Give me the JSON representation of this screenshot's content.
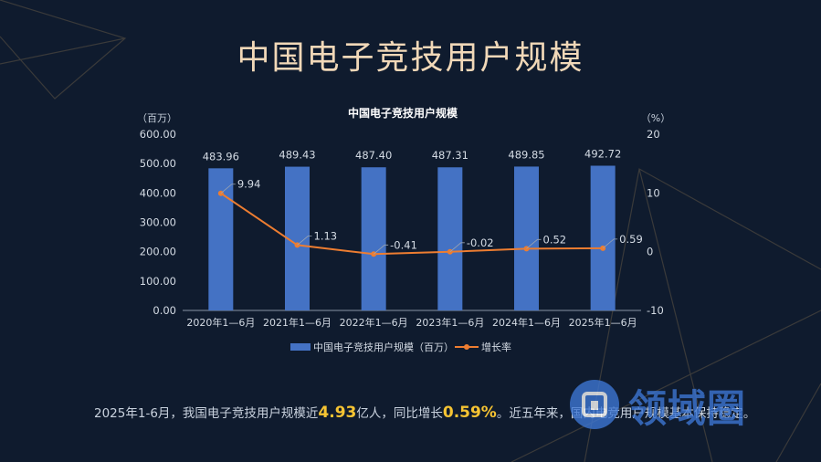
{
  "slide": {
    "title": "中国电子竞技用户规模"
  },
  "chart_data": {
    "type": "bar",
    "title": "中国电子竞技用户规模",
    "categories": [
      "2020年1—6月",
      "2021年1—6月",
      "2022年1—6月",
      "2023年1—6月",
      "2024年1—6月",
      "2025年1—6月"
    ],
    "series": [
      {
        "name": "中国电子竞技用户规模（百万）",
        "type": "bar",
        "axis": "left",
        "values": [
          483.96,
          489.43,
          487.4,
          487.31,
          489.85,
          492.72
        ],
        "labels": [
          "483.96",
          "489.43",
          "487.40",
          "487.31",
          "489.85",
          "492.72"
        ]
      },
      {
        "name": "增长率",
        "type": "line",
        "axis": "right",
        "values": [
          9.94,
          1.13,
          -0.41,
          -0.02,
          0.52,
          0.59
        ],
        "labels": [
          "9.94",
          "1.13",
          "-0.41",
          "-0.02",
          "0.52",
          "0.59"
        ]
      }
    ],
    "y_left": {
      "unit": "（百万）",
      "range": [
        0,
        600
      ],
      "ticks": [
        "0.00",
        "100.00",
        "200.00",
        "300.00",
        "400.00",
        "500.00",
        "600.00"
      ]
    },
    "y_right": {
      "unit": "（%）",
      "range": [
        -10,
        20
      ],
      "ticks": [
        "-10",
        "0",
        "10",
        "20"
      ]
    },
    "legend_position": "bottom",
    "grid": false
  },
  "colors": {
    "bar": "#4472c4",
    "line": "#ed7d31",
    "title": "#f1d8b8",
    "highlight": "#f6c433",
    "text": "#c9d2de"
  },
  "footer": {
    "part1": "2025年1-6月，我国电子竞技用户规模近",
    "value1": "4.93",
    "part2": "亿人，同比增长",
    "value2": "0.59%",
    "part3": "。近五年来，国内电竞用户规模基本保持稳定。"
  },
  "watermark": {
    "text": "领域圈"
  }
}
